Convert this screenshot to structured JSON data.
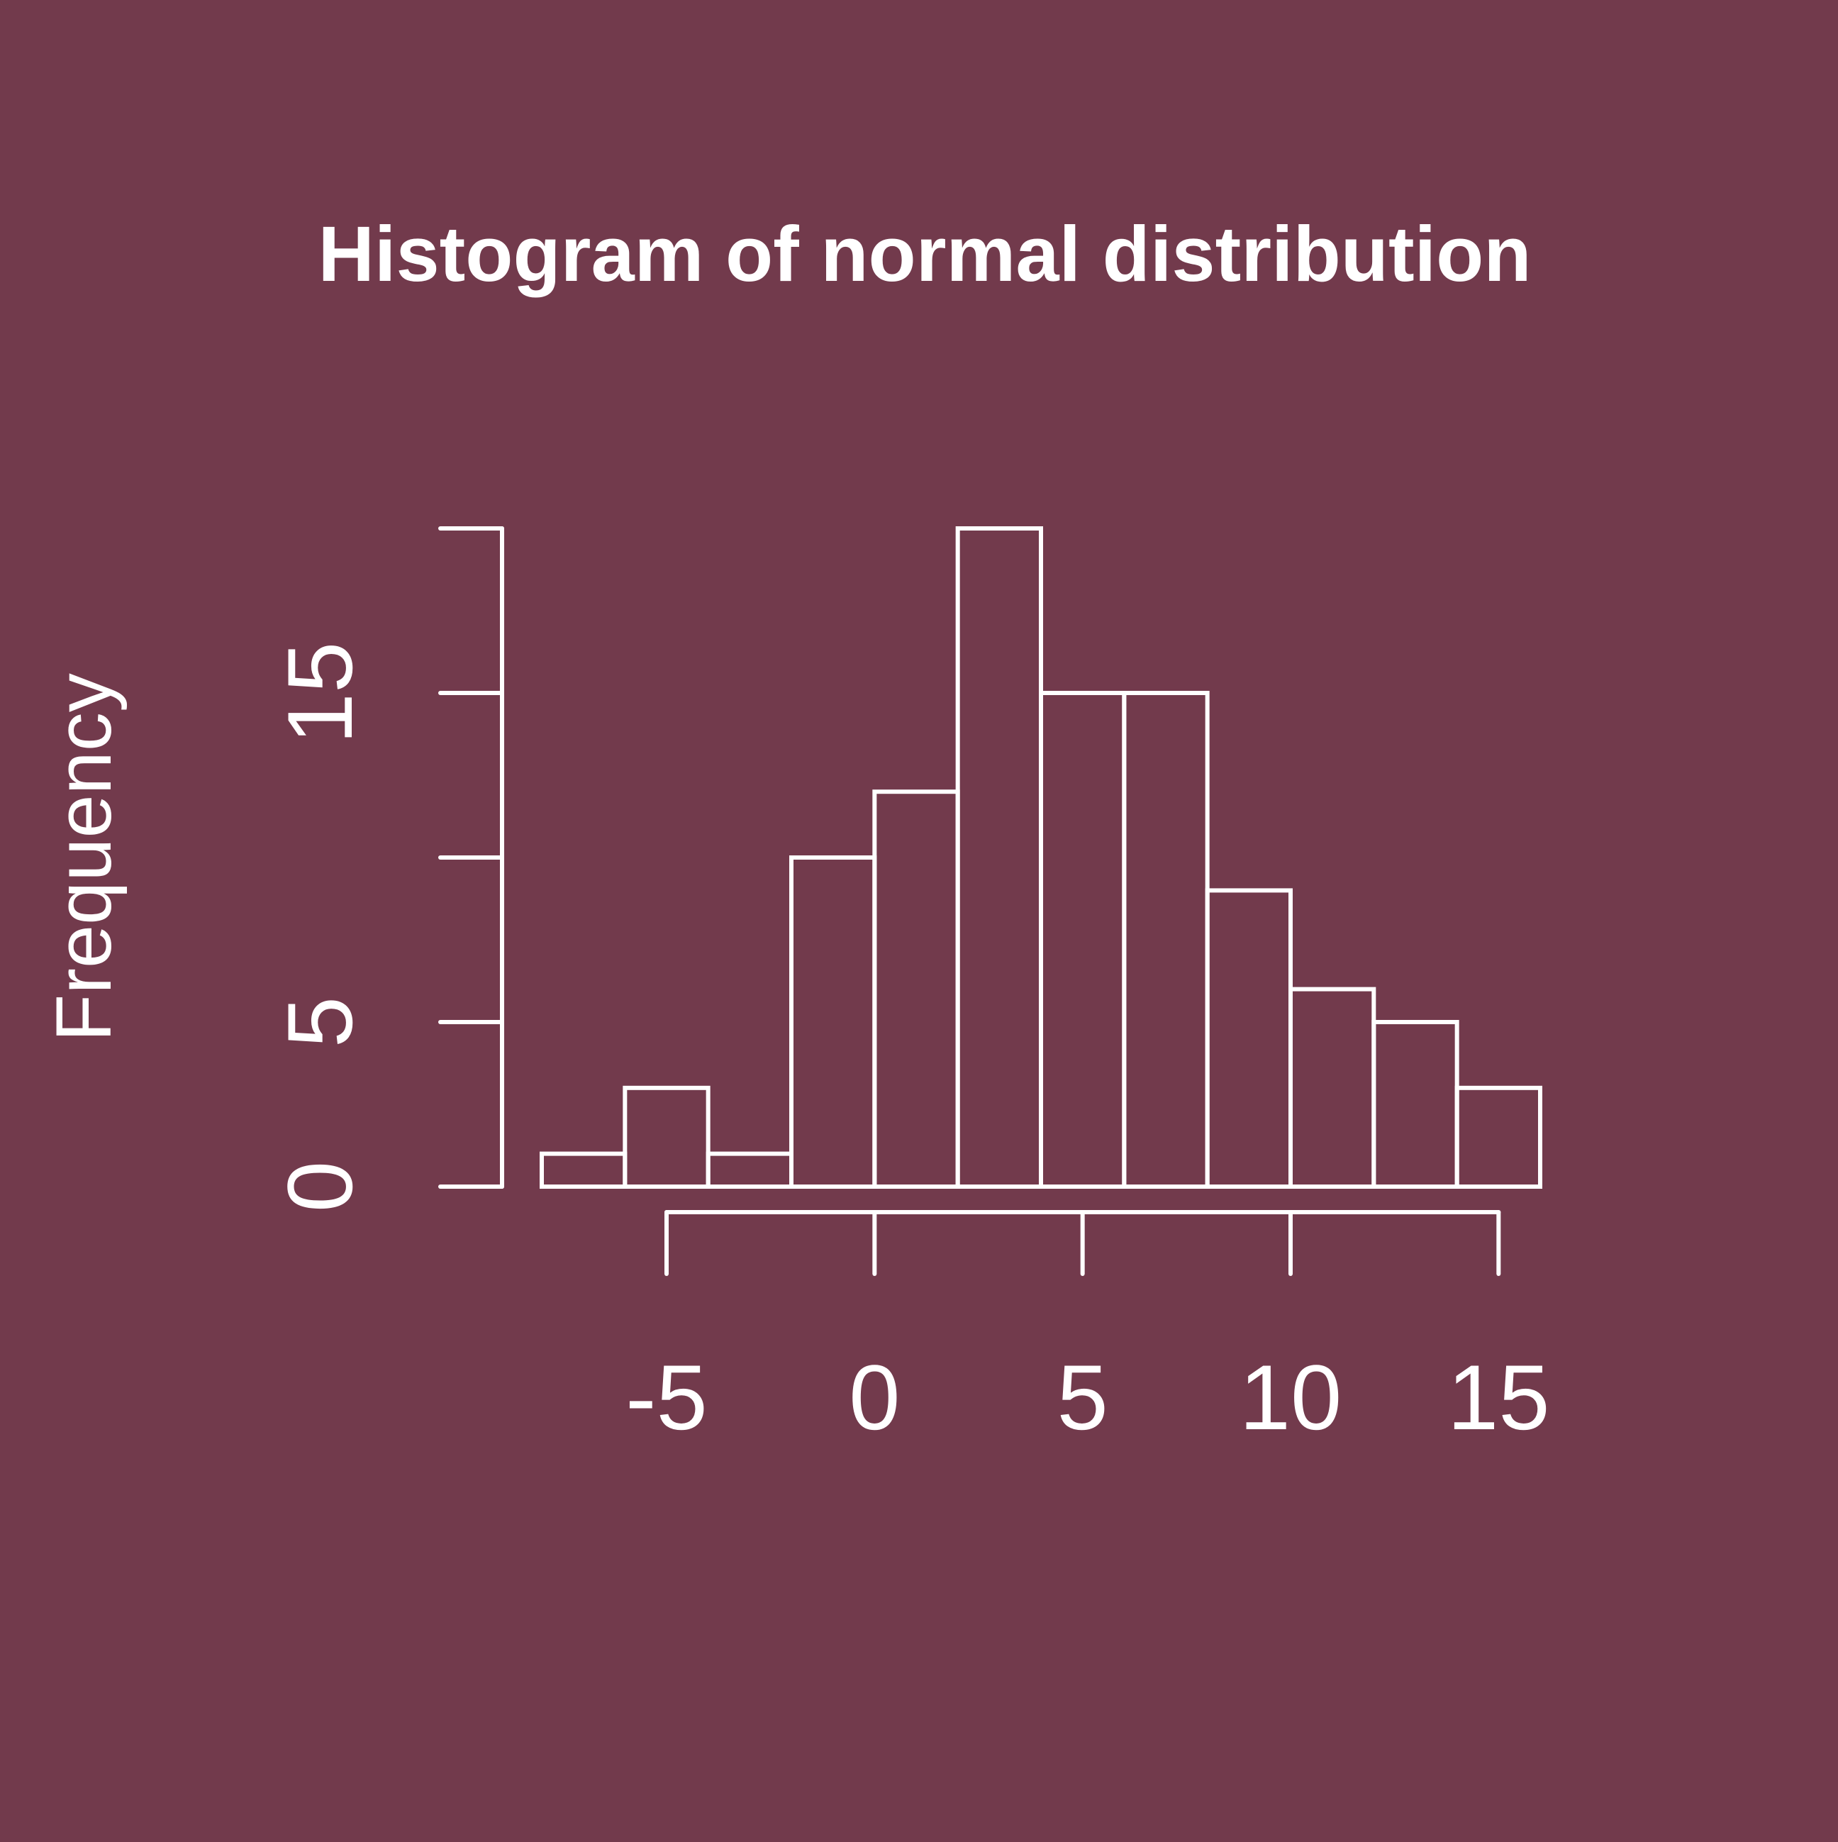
{
  "colors": {
    "background": "#723a4c",
    "foreground": "#ffffff"
  },
  "chart_data": {
    "type": "bar",
    "title": "Histogram of normal distribution",
    "xlabel": "",
    "ylabel": "Frequency",
    "bins": [
      {
        "x0": -8,
        "x1": -6,
        "count": 1
      },
      {
        "x0": -6,
        "x1": -4,
        "count": 3
      },
      {
        "x0": -4,
        "x1": -2,
        "count": 1
      },
      {
        "x0": -2,
        "x1": 0,
        "count": 10
      },
      {
        "x0": 0,
        "x1": 2,
        "count": 12
      },
      {
        "x0": 2,
        "x1": 4,
        "count": 20
      },
      {
        "x0": 4,
        "x1": 6,
        "count": 15
      },
      {
        "x0": 6,
        "x1": 8,
        "count": 15
      },
      {
        "x0": 8,
        "x1": 10,
        "count": 9
      },
      {
        "x0": 10,
        "x1": 12,
        "count": 6
      },
      {
        "x0": 12,
        "x1": 14,
        "count": 5
      },
      {
        "x0": 14,
        "x1": 16,
        "count": 3
      }
    ],
    "x_ticks": [
      -5,
      0,
      5,
      10,
      15
    ],
    "x_tick_labels": [
      "-5",
      "0",
      "5",
      "10",
      "15"
    ],
    "y_ticks": [
      0,
      5,
      10,
      15,
      20
    ],
    "y_tick_labels": [
      "0",
      "5",
      "",
      "15",
      ""
    ],
    "xlim": [
      -8,
      16
    ],
    "ylim": [
      0,
      20
    ],
    "grid": false,
    "legend": "none"
  }
}
